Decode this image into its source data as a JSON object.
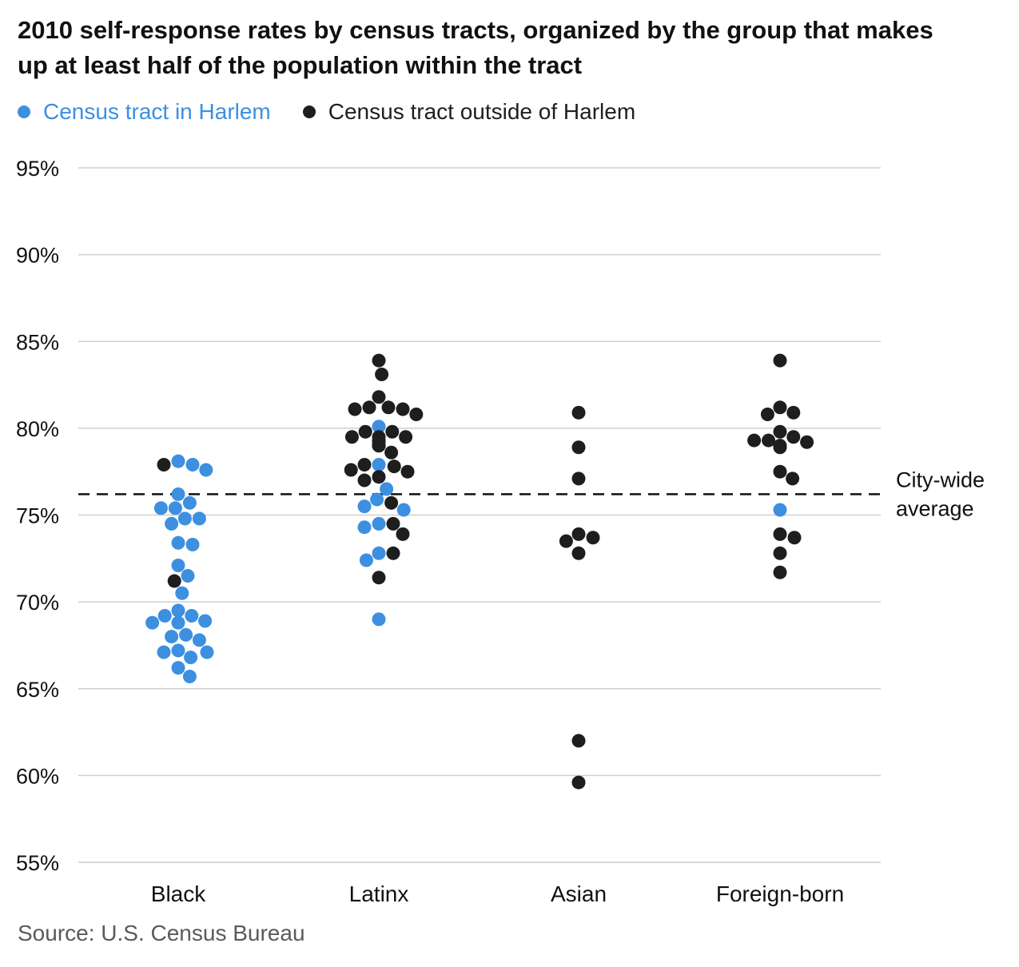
{
  "title": "2010 self-response rates by census tracts, organized by the group that makes up at least half of the population within the tract",
  "source": "Source: U.S. Census Bureau",
  "colors": {
    "harlem": "#3d8fe0",
    "outside": "#1e1e1e",
    "grid": "#cfcfcf",
    "text": "#111111"
  },
  "legend": [
    {
      "label": "Census tract in Harlem",
      "color": "#3d8fe0"
    },
    {
      "label": "Census tract outside of Harlem",
      "color": "#1e1e1e"
    }
  ],
  "chart_data": {
    "type": "scatter",
    "title": "2010 self-response rates by census tracts, organized by the group that makes up at least half of the population within the tract",
    "categories": [
      "Black",
      "Latinx",
      "Asian",
      "Foreign-born"
    ],
    "ylim": [
      55,
      95
    ],
    "yticks": [
      55,
      60,
      65,
      70,
      75,
      80,
      85,
      90,
      95
    ],
    "ytick_labels": [
      "55%",
      "60%",
      "65%",
      "70%",
      "75%",
      "80%",
      "85%",
      "90%",
      "95%"
    ],
    "grid": true,
    "legend_position": "top-left",
    "reference_line": {
      "value": 76.2,
      "label_lines": [
        "City-wide",
        "average"
      ],
      "style": "dashed"
    },
    "series": [
      {
        "name": "Census tract in Harlem",
        "points": [
          {
            "cat": "Black",
            "y": 78.1
          },
          {
            "cat": "Black",
            "y": 77.9
          },
          {
            "cat": "Black",
            "y": 77.6
          },
          {
            "cat": "Black",
            "y": 76.2
          },
          {
            "cat": "Black",
            "y": 75.7
          },
          {
            "cat": "Black",
            "y": 75.4
          },
          {
            "cat": "Black",
            "y": 75.4
          },
          {
            "cat": "Black",
            "y": 74.8
          },
          {
            "cat": "Black",
            "y": 74.8
          },
          {
            "cat": "Black",
            "y": 74.5
          },
          {
            "cat": "Black",
            "y": 73.4
          },
          {
            "cat": "Black",
            "y": 73.3
          },
          {
            "cat": "Black",
            "y": 72.1
          },
          {
            "cat": "Black",
            "y": 71.5
          },
          {
            "cat": "Black",
            "y": 70.5
          },
          {
            "cat": "Black",
            "y": 69.5
          },
          {
            "cat": "Black",
            "y": 69.2
          },
          {
            "cat": "Black",
            "y": 69.2
          },
          {
            "cat": "Black",
            "y": 68.9
          },
          {
            "cat": "Black",
            "y": 68.8
          },
          {
            "cat": "Black",
            "y": 68.8
          },
          {
            "cat": "Black",
            "y": 68.1
          },
          {
            "cat": "Black",
            "y": 68.0
          },
          {
            "cat": "Black",
            "y": 67.8
          },
          {
            "cat": "Black",
            "y": 67.2
          },
          {
            "cat": "Black",
            "y": 67.1
          },
          {
            "cat": "Black",
            "y": 67.1
          },
          {
            "cat": "Black",
            "y": 66.8
          },
          {
            "cat": "Black",
            "y": 66.2
          },
          {
            "cat": "Black",
            "y": 65.7
          },
          {
            "cat": "Latinx",
            "y": 80.1
          },
          {
            "cat": "Latinx",
            "y": 79.0
          },
          {
            "cat": "Latinx",
            "y": 77.9
          },
          {
            "cat": "Latinx",
            "y": 77.2
          },
          {
            "cat": "Latinx",
            "y": 76.5
          },
          {
            "cat": "Latinx",
            "y": 75.9
          },
          {
            "cat": "Latinx",
            "y": 75.5
          },
          {
            "cat": "Latinx",
            "y": 75.3
          },
          {
            "cat": "Latinx",
            "y": 74.5
          },
          {
            "cat": "Latinx",
            "y": 74.3
          },
          {
            "cat": "Latinx",
            "y": 72.8
          },
          {
            "cat": "Latinx",
            "y": 72.4
          },
          {
            "cat": "Latinx",
            "y": 69.0
          },
          {
            "cat": "Foreign-born",
            "y": 75.3
          }
        ]
      },
      {
        "name": "Census tract outside of Harlem",
        "points": [
          {
            "cat": "Black",
            "y": 77.9
          },
          {
            "cat": "Black",
            "y": 71.2
          },
          {
            "cat": "Latinx",
            "y": 83.9
          },
          {
            "cat": "Latinx",
            "y": 83.1
          },
          {
            "cat": "Latinx",
            "y": 81.8
          },
          {
            "cat": "Latinx",
            "y": 81.2
          },
          {
            "cat": "Latinx",
            "y": 81.2
          },
          {
            "cat": "Latinx",
            "y": 81.1
          },
          {
            "cat": "Latinx",
            "y": 81.1
          },
          {
            "cat": "Latinx",
            "y": 80.8
          },
          {
            "cat": "Latinx",
            "y": 79.8
          },
          {
            "cat": "Latinx",
            "y": 79.8
          },
          {
            "cat": "Latinx",
            "y": 79.5
          },
          {
            "cat": "Latinx",
            "y": 79.5
          },
          {
            "cat": "Latinx",
            "y": 79.5
          },
          {
            "cat": "Latinx",
            "y": 79.3
          },
          {
            "cat": "Latinx",
            "y": 79.2
          },
          {
            "cat": "Latinx",
            "y": 79.0
          },
          {
            "cat": "Latinx",
            "y": 79.0
          },
          {
            "cat": "Latinx",
            "y": 79.0
          },
          {
            "cat": "Latinx",
            "y": 78.6
          },
          {
            "cat": "Latinx",
            "y": 77.9
          },
          {
            "cat": "Latinx",
            "y": 77.8
          },
          {
            "cat": "Latinx",
            "y": 77.6
          },
          {
            "cat": "Latinx",
            "y": 77.5
          },
          {
            "cat": "Latinx",
            "y": 77.2
          },
          {
            "cat": "Latinx",
            "y": 77.0
          },
          {
            "cat": "Latinx",
            "y": 75.7
          },
          {
            "cat": "Latinx",
            "y": 74.5
          },
          {
            "cat": "Latinx",
            "y": 73.9
          },
          {
            "cat": "Latinx",
            "y": 72.8
          },
          {
            "cat": "Latinx",
            "y": 71.4
          },
          {
            "cat": "Asian",
            "y": 80.9
          },
          {
            "cat": "Asian",
            "y": 78.9
          },
          {
            "cat": "Asian",
            "y": 77.1
          },
          {
            "cat": "Asian",
            "y": 73.9
          },
          {
            "cat": "Asian",
            "y": 73.7
          },
          {
            "cat": "Asian",
            "y": 73.5
          },
          {
            "cat": "Asian",
            "y": 72.8
          },
          {
            "cat": "Asian",
            "y": 62.0
          },
          {
            "cat": "Asian",
            "y": 59.6
          },
          {
            "cat": "Foreign-born",
            "y": 83.9
          },
          {
            "cat": "Foreign-born",
            "y": 81.2
          },
          {
            "cat": "Foreign-born",
            "y": 80.9
          },
          {
            "cat": "Foreign-born",
            "y": 80.8
          },
          {
            "cat": "Foreign-born",
            "y": 79.8
          },
          {
            "cat": "Foreign-born",
            "y": 79.5
          },
          {
            "cat": "Foreign-born",
            "y": 79.3
          },
          {
            "cat": "Foreign-born",
            "y": 79.3
          },
          {
            "cat": "Foreign-born",
            "y": 79.2
          },
          {
            "cat": "Foreign-born",
            "y": 79.0
          },
          {
            "cat": "Foreign-born",
            "y": 78.9
          },
          {
            "cat": "Foreign-born",
            "y": 77.5
          },
          {
            "cat": "Foreign-born",
            "y": 77.1
          },
          {
            "cat": "Foreign-born",
            "y": 73.9
          },
          {
            "cat": "Foreign-born",
            "y": 73.7
          },
          {
            "cat": "Foreign-born",
            "y": 72.8
          },
          {
            "cat": "Foreign-born",
            "y": 71.7
          }
        ]
      }
    ]
  }
}
